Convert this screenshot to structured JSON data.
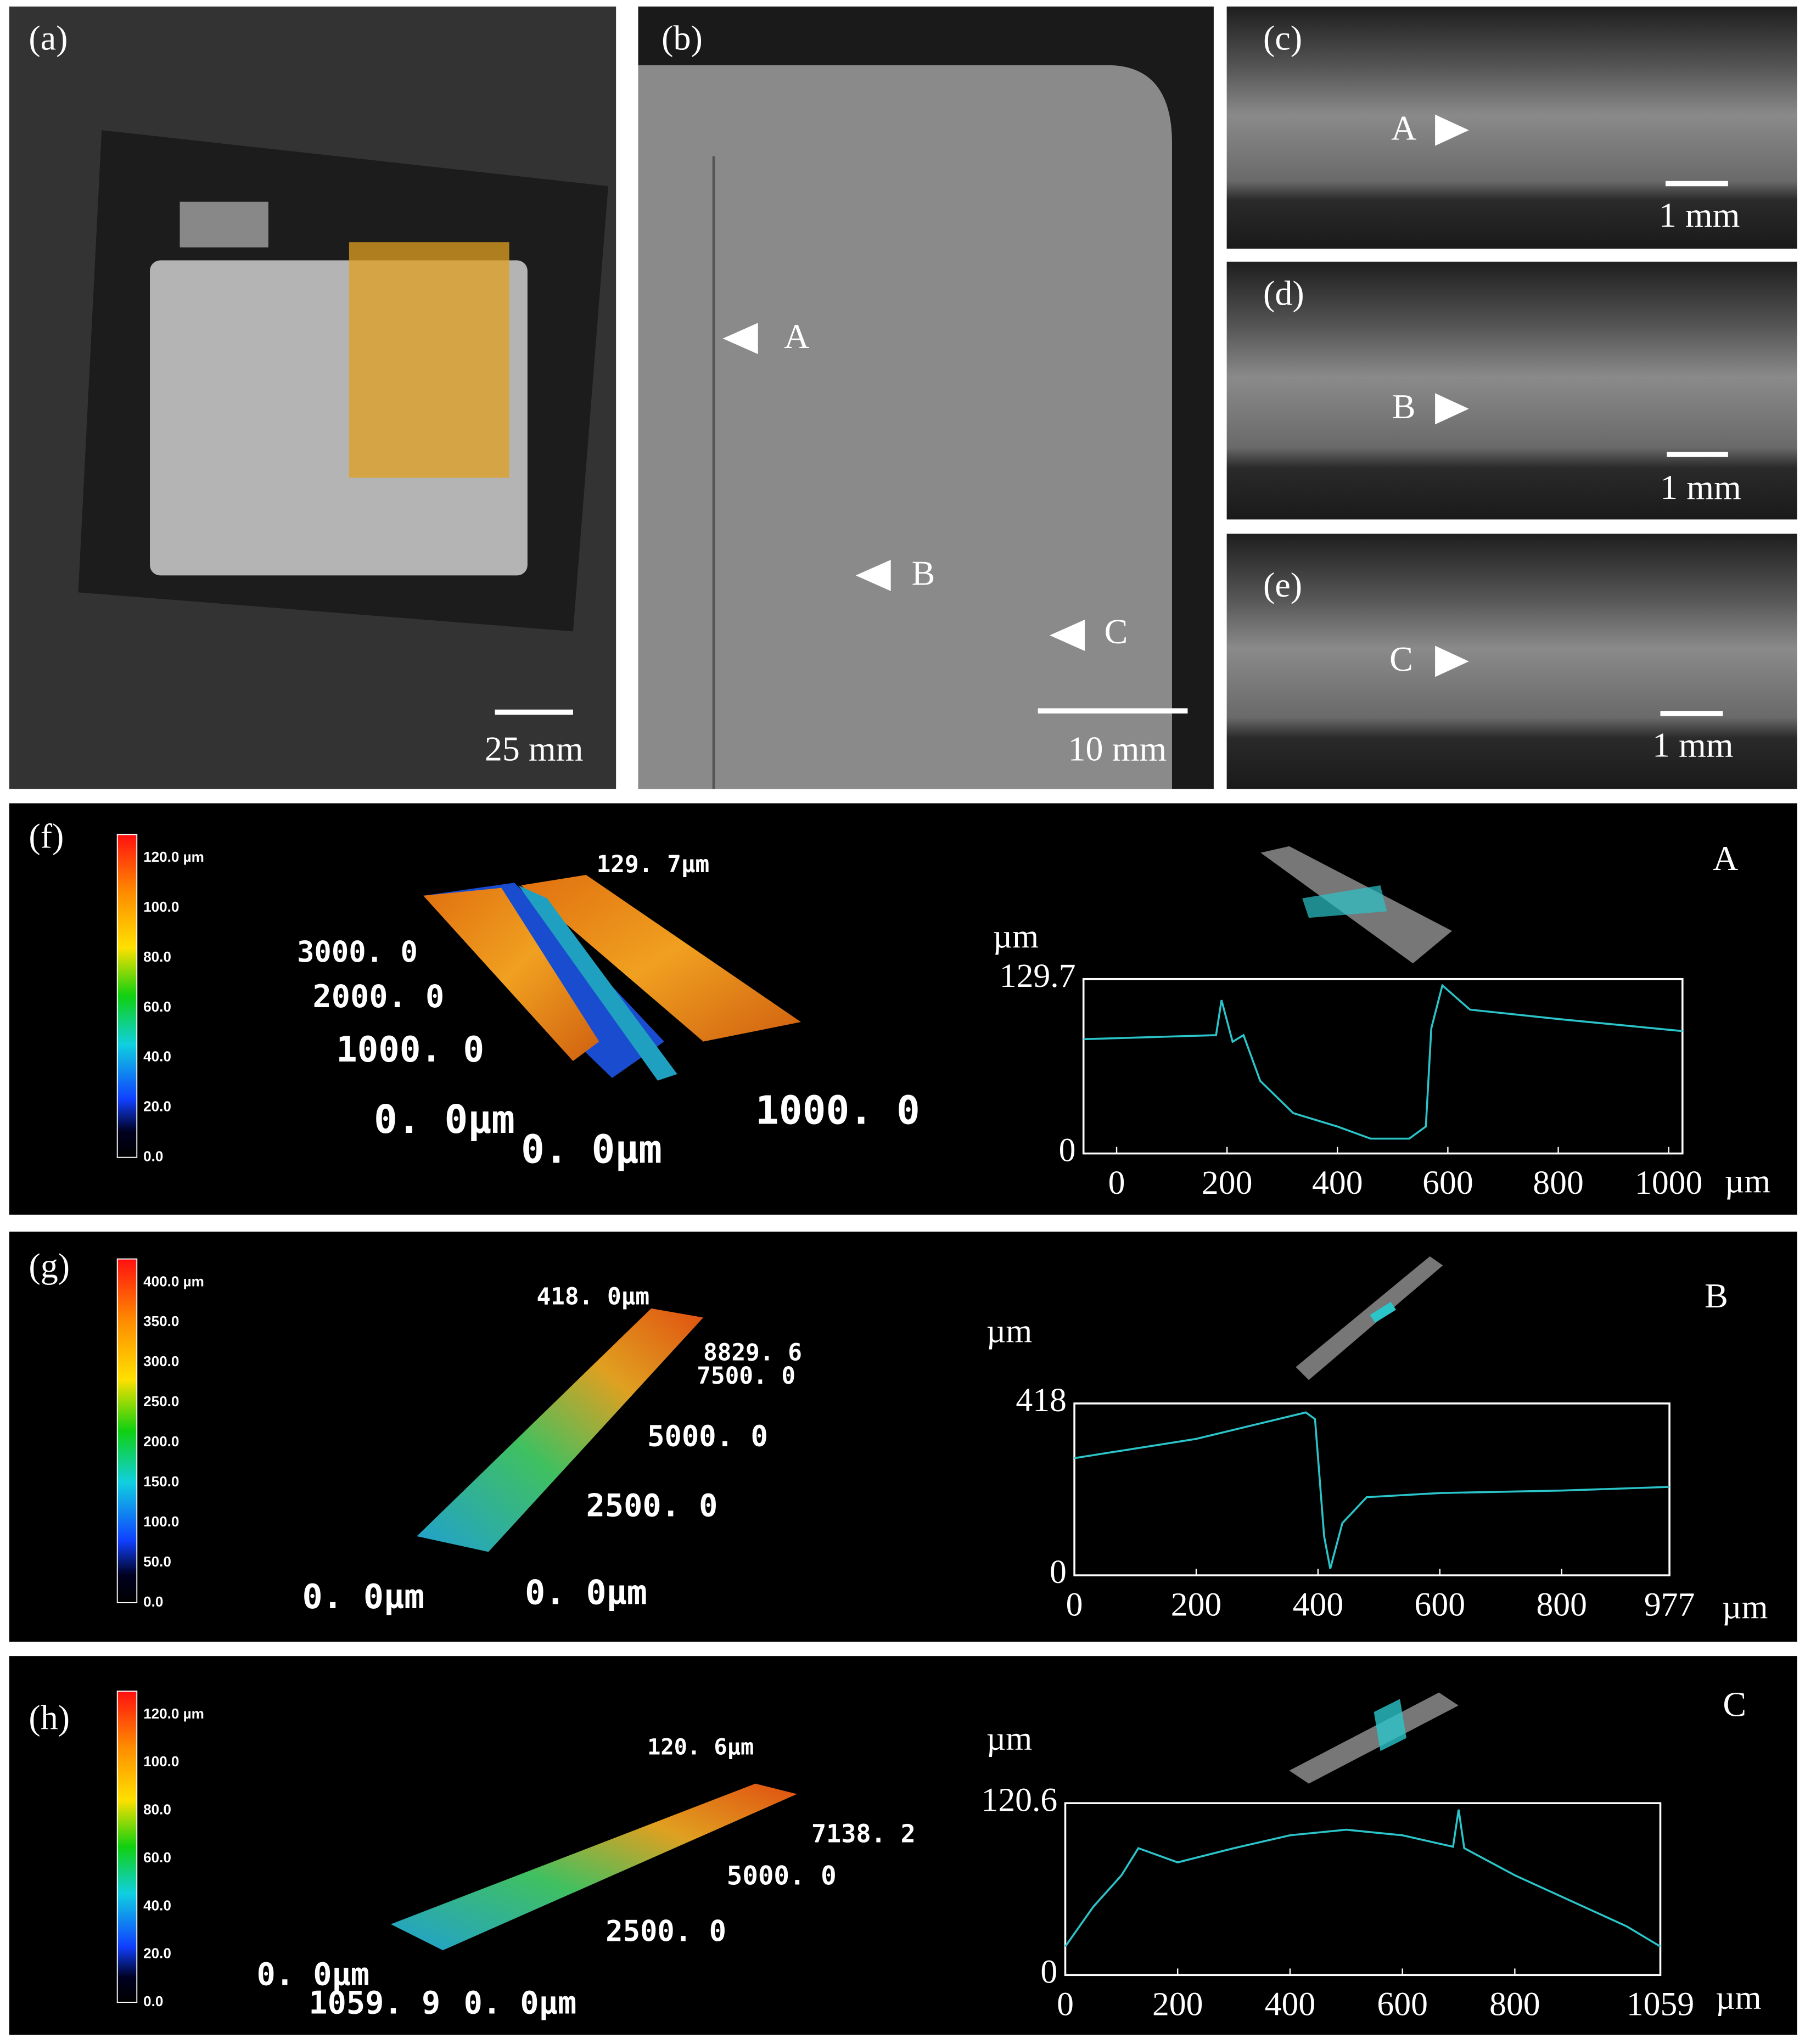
{
  "image_panels": [
    {
      "label": "(a)",
      "scale": "25 mm"
    },
    {
      "label": "(b)",
      "scale": "10 mm",
      "markers": [
        "A",
        "B",
        "C"
      ]
    },
    {
      "label": "(c)",
      "scale": "1 mm",
      "marker": "A"
    },
    {
      "label": "(d)",
      "scale": "1 mm",
      "marker": "B"
    },
    {
      "label": "(e)",
      "scale": "1 mm",
      "marker": "C"
    }
  ],
  "profile_panels": [
    {
      "label": "(f)",
      "site": "A",
      "colorbar": [
        "120.0 µm",
        "100.0",
        "80.0",
        "60.0",
        "40.0",
        "20.0",
        "0.0"
      ],
      "surface_labels": [
        "129. 7µm",
        "3000. 0",
        "2000. 0",
        "1000. 0",
        "0. 0µm",
        "0. 0µm",
        "1000. 0"
      ]
    },
    {
      "label": "(g)",
      "site": "B",
      "colorbar": [
        "400.0 µm",
        "350.0",
        "300.0",
        "250.0",
        "200.0",
        "150.0",
        "100.0",
        "50.0",
        "0.0"
      ],
      "surface_labels": [
        "418. 0µm",
        "8829. 6",
        "7500. 0",
        "5000. 0",
        "2500. 0",
        "0. 0µm",
        "0. 0µm"
      ]
    },
    {
      "label": "(h)",
      "site": "C",
      "colorbar": [
        "120.0 µm",
        "100.0",
        "80.0",
        "60.0",
        "40.0",
        "20.0",
        "0.0"
      ],
      "surface_labels": [
        "120. 6µm",
        "7138. 2",
        "5000. 0",
        "2500. 0",
        "0. 0µm",
        "1059. 9",
        "0. 0µm"
      ]
    }
  ],
  "chart_data": [
    {
      "type": "line",
      "x_label": "µm",
      "y_label": "µm",
      "color": "#2bc4c9",
      "x": [
        -60,
        180,
        190,
        210,
        230,
        260,
        320,
        400,
        460,
        530,
        560,
        570,
        590,
        640,
        800,
        1025
      ],
      "values": [
        85,
        88,
        114,
        83,
        88,
        54,
        30,
        20,
        11,
        11,
        20,
        93,
        125,
        107,
        100,
        91
      ],
      "xlim": [
        -60,
        1025
      ],
      "xticks": [
        0,
        200,
        400,
        600,
        800,
        1000
      ],
      "ylim": [
        0,
        129.7
      ],
      "yticks": [
        0,
        129.7
      ]
    },
    {
      "type": "line",
      "x_label": "µm",
      "y_label": "µm",
      "color": "#2bc4c9",
      "x": [
        0,
        200,
        380,
        395,
        410,
        420,
        440,
        480,
        600,
        800,
        977
      ],
      "values": [
        285,
        332,
        396,
        380,
        95,
        16,
        127,
        190,
        200,
        206,
        215
      ],
      "xlim": [
        0,
        977
      ],
      "xticks": [
        0,
        200,
        400,
        600,
        800,
        977
      ],
      "ylim": [
        0,
        418
      ],
      "yticks": [
        0,
        418
      ]
    },
    {
      "type": "line",
      "x_label": "µm",
      "y_label": "µm",
      "color": "#2bc4c9",
      "x": [
        0,
        50,
        100,
        130,
        200,
        300,
        400,
        500,
        600,
        690,
        700,
        710,
        800,
        900,
        1000,
        1059
      ],
      "values": [
        20,
        48,
        70,
        89,
        79,
        89,
        98,
        102,
        98,
        90,
        116,
        89,
        70,
        52,
        34,
        20
      ],
      "xlim": [
        0,
        1059
      ],
      "xticks": [
        0,
        200,
        400,
        600,
        800,
        1059
      ],
      "ylim": [
        0,
        120.6
      ],
      "yticks": [
        0,
        120.6
      ]
    }
  ]
}
